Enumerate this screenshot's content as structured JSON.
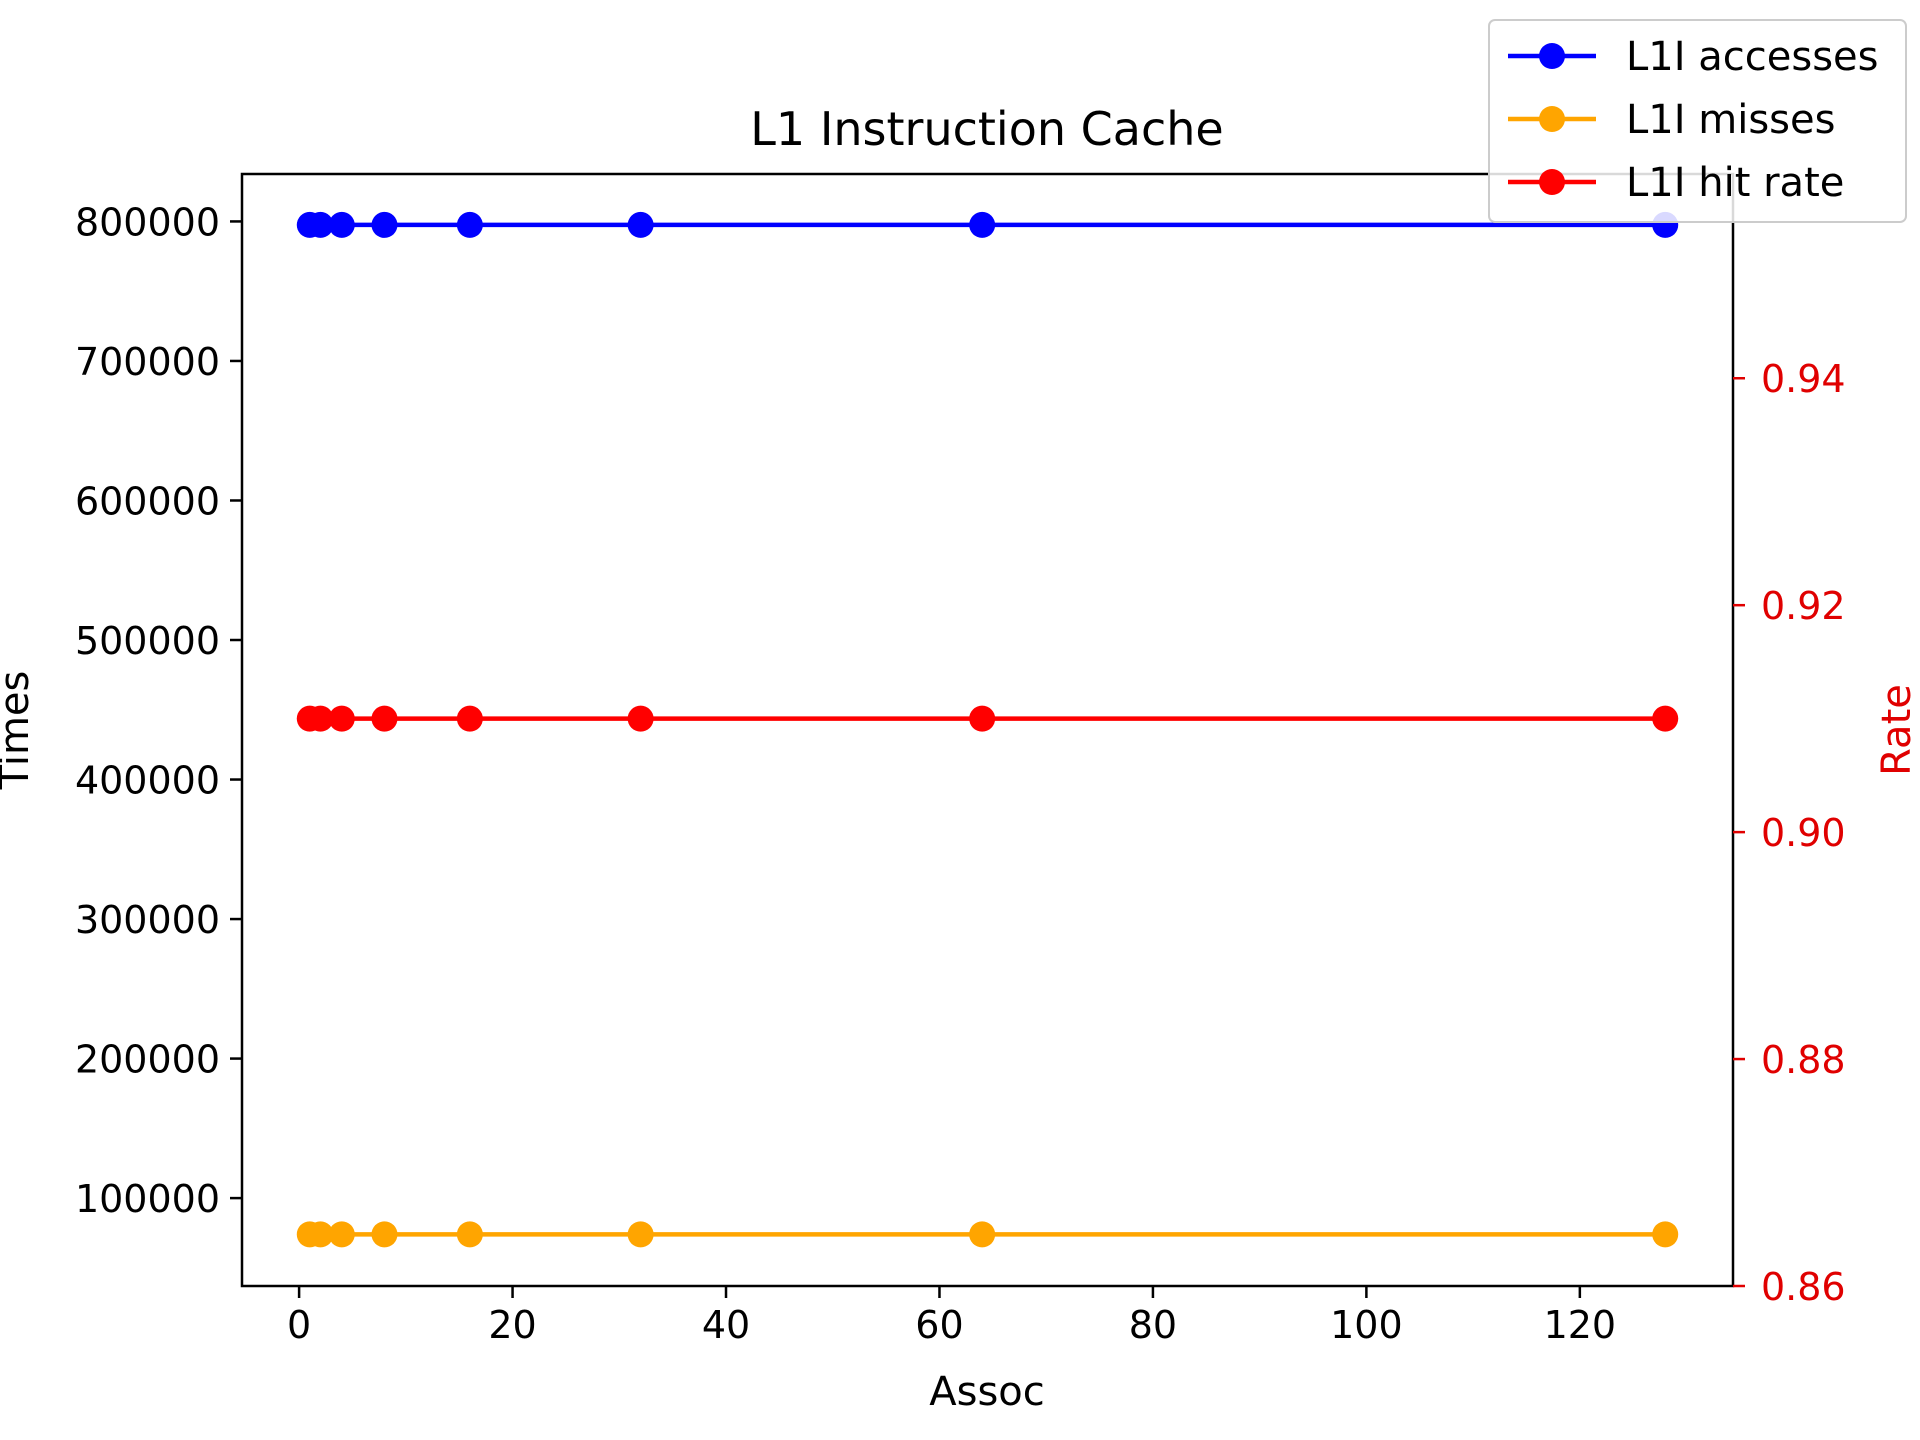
{
  "chart_data": {
    "type": "line",
    "title": "L1 Instruction Cache",
    "xlabel": "Assoc",
    "ylabel_left": "Times",
    "ylabel_right": "Rate",
    "x": [
      1,
      2,
      4,
      8,
      16,
      32,
      64,
      128
    ],
    "xlim": [
      -5.35,
      134.35
    ],
    "xticks": [
      0,
      20,
      40,
      60,
      80,
      100,
      120
    ],
    "ylim_left": [
      37000,
      834000
    ],
    "yticks_left": [
      100000,
      200000,
      300000,
      400000,
      500000,
      600000,
      700000,
      800000
    ],
    "ylim_right": [
      0.86,
      0.958
    ],
    "yticks_right": [
      0.86,
      0.88,
      0.9,
      0.92,
      0.94
    ],
    "right_axis_color": "#e00000",
    "grid": false,
    "legend_position": "top-right",
    "series": [
      {
        "name": "L1I accesses",
        "axis": "left",
        "color": "#0000ff",
        "values": [
          797500,
          797500,
          797500,
          797500,
          797500,
          797500,
          797500,
          797500
        ]
      },
      {
        "name": "L1I misses",
        "axis": "left",
        "color": "#ffa500",
        "values": [
          74000,
          74000,
          74000,
          74000,
          74000,
          74000,
          74000,
          74000
        ]
      },
      {
        "name": "L1I hit rate",
        "axis": "right",
        "color": "#ff0000",
        "values": [
          0.91,
          0.91,
          0.91,
          0.91,
          0.91,
          0.91,
          0.91,
          0.91
        ]
      }
    ]
  }
}
